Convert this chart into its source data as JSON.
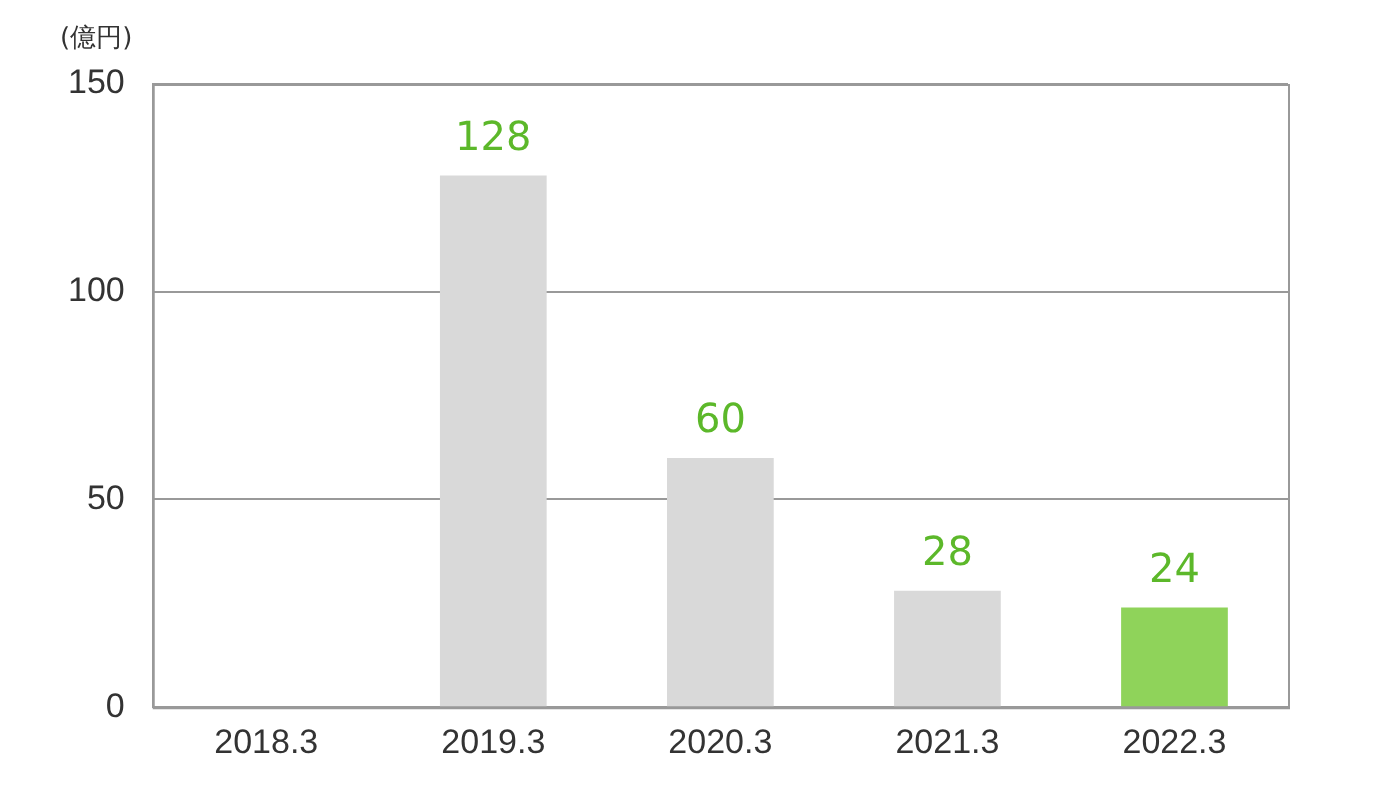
{
  "chart_data": {
    "type": "bar",
    "ylabel": "(億円)",
    "categories": [
      "2018.3",
      "2019.3",
      "2020.3",
      "2021.3",
      "2022.3"
    ],
    "values": [
      null,
      128,
      60,
      28,
      24
    ],
    "colors": [
      "#d9d9d9",
      "#d9d9d9",
      "#d9d9d9",
      "#d9d9d9",
      "#8fd35a"
    ],
    "ylim": [
      0,
      150
    ],
    "yticks": [
      0,
      50,
      100,
      150
    ],
    "grid": "y",
    "data_labels": true
  }
}
